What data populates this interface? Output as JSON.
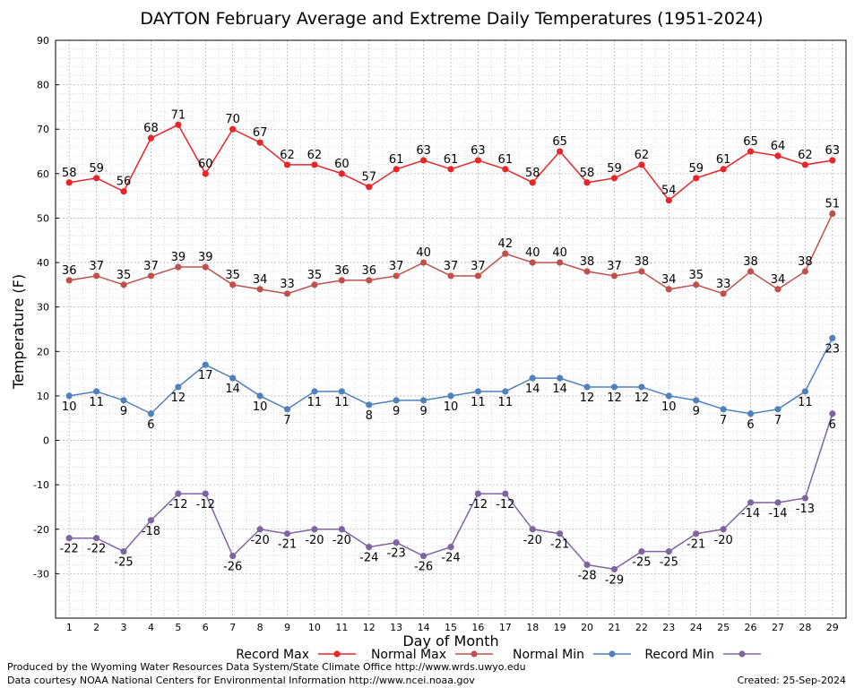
{
  "chart_data": {
    "type": "line",
    "title": "DAYTON February Average and Extreme Daily Temperatures (1951-2024)",
    "xlabel": "Day of Month",
    "ylabel": "Temperature (F)",
    "xlim": [
      0.5,
      29.5
    ],
    "ylim": [
      -40,
      90
    ],
    "y_ticks": [
      -30,
      -20,
      -10,
      0,
      10,
      20,
      30,
      40,
      50,
      60,
      70,
      80,
      90
    ],
    "grid": true,
    "legend_placement": "bottom",
    "x": [
      1,
      2,
      3,
      4,
      5,
      6,
      7,
      8,
      9,
      10,
      11,
      12,
      13,
      14,
      15,
      16,
      17,
      18,
      19,
      20,
      21,
      22,
      23,
      24,
      25,
      26,
      27,
      28,
      29
    ],
    "series": [
      {
        "name": "Record Max",
        "color": "#e8262a",
        "label_position": "above",
        "values": [
          58,
          59,
          56,
          68,
          71,
          60,
          70,
          67,
          62,
          62,
          60,
          57,
          61,
          63,
          61,
          63,
          61,
          58,
          65,
          58,
          59,
          62,
          54,
          59,
          61,
          65,
          64,
          62,
          63
        ]
      },
      {
        "name": "Normal Max",
        "color": "#c0504d",
        "label_position": "above",
        "values": [
          36,
          37,
          35,
          37,
          39,
          39,
          35,
          34,
          33,
          35,
          36,
          36,
          37,
          40,
          37,
          37,
          42,
          40,
          40,
          38,
          37,
          38,
          34,
          35,
          33,
          38,
          34,
          38,
          51
        ]
      },
      {
        "name": "Normal Min",
        "color": "#4f81bd",
        "label_position": "below",
        "values": [
          10,
          11,
          9,
          6,
          12,
          17,
          14,
          10,
          7,
          11,
          11,
          8,
          9,
          9,
          10,
          11,
          11,
          14,
          14,
          12,
          12,
          12,
          10,
          9,
          7,
          6,
          7,
          11,
          23
        ]
      },
      {
        "name": "Record Min",
        "color": "#8064a2",
        "label_position": "below",
        "values": [
          -22,
          -22,
          -25,
          -18,
          -12,
          -12,
          -26,
          -20,
          -21,
          -20,
          -20,
          -24,
          -23,
          -26,
          -24,
          -12,
          -12,
          -20,
          -21,
          -28,
          -29,
          -25,
          -25,
          -21,
          -20,
          -14,
          -14,
          -13,
          6
        ]
      }
    ]
  },
  "footer": {
    "producer": "Produced by the Wyoming Water Resources Data System/State Climate Office http://www.wrds.uwyo.edu",
    "source": "Data courtesy NOAA National Centers for Environmental Information http://www.ncei.noaa.gov",
    "created": "Created:  25-Sep-2024"
  }
}
